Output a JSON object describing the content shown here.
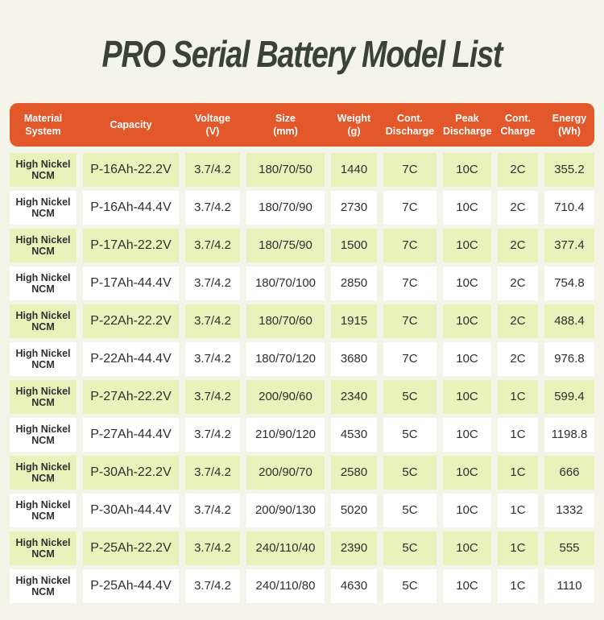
{
  "title": "PRO Serial Battery Model List",
  "colors": {
    "background": "#f5f4e8",
    "header_bg": "#e2582a",
    "header_text": "#ffffff",
    "row_green": "#e9f2ba",
    "row_white": "#ffffff",
    "cell_text": "#2f2f2f",
    "title_text": "#3a4233"
  },
  "chart_data": {
    "type": "table",
    "title": "PRO Serial Battery Model List",
    "columns": [
      "Material\nSystem",
      "Capacity",
      "Voltage\n(V)",
      "Size\n(mm)",
      "Weight\n(g)",
      "Cont.\nDischarge",
      "Peak\nDischarge",
      "Cont.\nCharge",
      "Energy\n(Wh)"
    ],
    "rows": [
      [
        "High Nickel NCM",
        "P-16Ah-22.2V",
        "3.7/4.2",
        "180/70/50",
        "1440",
        "7C",
        "10C",
        "2C",
        "355.2"
      ],
      [
        "High Nickel NCM",
        "P-16Ah-44.4V",
        "3.7/4.2",
        "180/70/90",
        "2730",
        "7C",
        "10C",
        "2C",
        "710.4"
      ],
      [
        "High Nickel NCM",
        "P-17Ah-22.2V",
        "3.7/4.2",
        "180/75/90",
        "1500",
        "7C",
        "10C",
        "2C",
        "377.4"
      ],
      [
        "High Nickel NCM",
        "P-17Ah-44.4V",
        "3.7/4.2",
        "180/70/100",
        "2850",
        "7C",
        "10C",
        "2C",
        "754.8"
      ],
      [
        "High Nickel NCM",
        "P-22Ah-22.2V",
        "3.7/4.2",
        "180/70/60",
        "1915",
        "7C",
        "10C",
        "2C",
        "488.4"
      ],
      [
        "High Nickel NCM",
        "P-22Ah-44.4V",
        "3.7/4.2",
        "180/70/120",
        "3680",
        "7C",
        "10C",
        "2C",
        "976.8"
      ],
      [
        "High Nickel NCM",
        "P-27Ah-22.2V",
        "3.7/4.2",
        "200/90/60",
        "2340",
        "5C",
        "10C",
        "1C",
        "599.4"
      ],
      [
        "High Nickel NCM",
        "P-27Ah-44.4V",
        "3.7/4.2",
        "210/90/120",
        "4530",
        "5C",
        "10C",
        "1C",
        "1198.8"
      ],
      [
        "High Nickel NCM",
        "P-30Ah-22.2V",
        "3.7/4.2",
        "200/90/70",
        "2580",
        "5C",
        "10C",
        "1C",
        "666"
      ],
      [
        "High Nickel NCM",
        "P-30Ah-44.4V",
        "3.7/4.2",
        "200/90/130",
        "5020",
        "5C",
        "10C",
        "1C",
        "1332"
      ],
      [
        "High Nickel NCM",
        "P-25Ah-22.2V",
        "3.7/4.2",
        "240/110/40",
        "2390",
        "5C",
        "10C",
        "1C",
        "555"
      ],
      [
        "High Nickel NCM",
        "P-25Ah-44.4V",
        "3.7/4.2",
        "240/110/80",
        "4630",
        "5C",
        "10C",
        "1C",
        "1110"
      ]
    ]
  }
}
